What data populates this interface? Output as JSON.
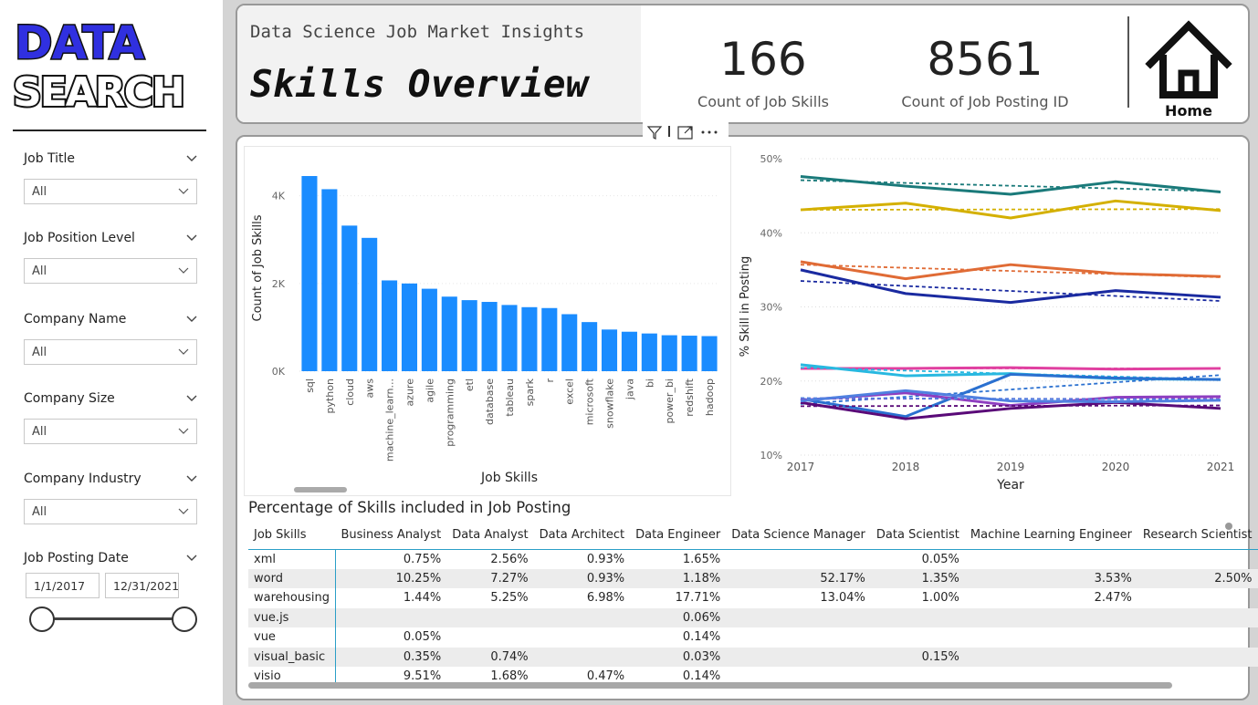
{
  "logo": {
    "line1": "DATA",
    "line2": "SEARCH"
  },
  "filters": [
    {
      "title": "Job Title",
      "value": "All"
    },
    {
      "title": "Job Position Level",
      "value": "All"
    },
    {
      "title": "Company Name",
      "value": "All"
    },
    {
      "title": "Company Size",
      "value": "All"
    },
    {
      "title": "Company Industry",
      "value": "All"
    }
  ],
  "date_filter": {
    "title": "Job Posting Date",
    "start": "1/1/2017",
    "end": "12/31/2021",
    "range_fraction": [
      0,
      1
    ]
  },
  "header": {
    "subtitle": "Data Science Job Market Insights",
    "title": "Skills Overview",
    "kpis": [
      {
        "value": "166",
        "label": "Count of Job Skills"
      },
      {
        "value": "8561",
        "label": "Count of Job Posting ID"
      }
    ],
    "home_label": "Home"
  },
  "colors": {
    "bar": "#1a8cff",
    "header_bg": "#f2f2f2",
    "grid": "#cccccc",
    "table_rule": "#2a9fc7"
  },
  "chart_data": [
    {
      "type": "bar",
      "xlabel": "Job Skills",
      "ylabel": "Count of Job Skills",
      "ytick_labels": [
        "0K",
        "2K",
        "4K"
      ],
      "ylim": [
        0,
        4700
      ],
      "categories": [
        "sql",
        "python",
        "cloud",
        "aws",
        "machine_learn...",
        "azure",
        "agile",
        "programming",
        "etl",
        "database",
        "tableau",
        "spark",
        "r",
        "excel",
        "microsoft",
        "snowflake",
        "java",
        "bi",
        "power_bi",
        "redshift",
        "hadoop"
      ],
      "values": [
        4450,
        4150,
        3320,
        3040,
        2070,
        2000,
        1880,
        1700,
        1620,
        1580,
        1510,
        1460,
        1440,
        1300,
        1120,
        950,
        900,
        860,
        820,
        810,
        800
      ]
    },
    {
      "type": "line",
      "xlabel": "Year",
      "ylabel": "% Skill in Posting",
      "x": [
        "2017",
        "2018",
        "2019",
        "2020",
        "2021"
      ],
      "ylim": [
        10,
        50
      ],
      "ytick_labels": [
        "10%",
        "20%",
        "30%",
        "40%",
        "50%"
      ],
      "series": [
        {
          "color": "#1a7a7a",
          "values": [
            47.6,
            46.3,
            45.2,
            46.9,
            45.5
          ],
          "trend": [
            47.1,
            45.6
          ]
        },
        {
          "color": "#d4b000",
          "values": [
            43.1,
            44.0,
            42.0,
            44.3,
            43.0
          ],
          "trend": [
            43.1,
            43.2
          ]
        },
        {
          "color": "#e06b35",
          "values": [
            36.1,
            33.8,
            35.7,
            34.5,
            34.1
          ],
          "trend": [
            35.7,
            34.0
          ]
        },
        {
          "color": "#1a2aa0",
          "values": [
            35.0,
            31.8,
            30.6,
            32.2,
            31.3
          ],
          "trend": [
            33.5,
            30.8
          ]
        },
        {
          "color": "#e040a0",
          "values": [
            21.7,
            21.7,
            21.8,
            21.6,
            21.7
          ],
          "trend": [
            21.7,
            21.7
          ]
        },
        {
          "color": "#28b8e0",
          "values": [
            22.2,
            20.7,
            21.0,
            20.3,
            20.2
          ],
          "trend": [
            21.8,
            20.2
          ]
        },
        {
          "color": "#2a70d0",
          "values": [
            17.6,
            15.2,
            20.9,
            20.4,
            20.2
          ],
          "trend": [
            16.9,
            20.8
          ]
        },
        {
          "color": "#8e3ec0",
          "values": [
            17.4,
            18.4,
            16.7,
            17.8,
            17.9
          ],
          "trend": [
            17.6,
            17.6
          ]
        },
        {
          "color": "#5a0a78",
          "values": [
            17.1,
            14.9,
            16.3,
            17.1,
            16.3
          ],
          "trend": [
            16.6,
            16.7
          ]
        },
        {
          "color": "#5080e0",
          "values": [
            17.3,
            18.7,
            17.3,
            17.2,
            17.4
          ],
          "trend": [
            17.7,
            17.5
          ]
        }
      ]
    }
  ],
  "table": {
    "title": "Percentage of Skills included in Job Posting",
    "columns": [
      "Job Skills",
      "Business Analyst",
      "Data Analyst",
      "Data Architect",
      "Data Engineer",
      "Data Science Manager",
      "Data Scientist",
      "Machine Learning Engineer",
      "Research Scientist"
    ],
    "rows": [
      [
        "xml",
        "0.75%",
        "2.56%",
        "0.93%",
        "1.65%",
        "",
        "0.05%",
        "",
        ""
      ],
      [
        "word",
        "10.25%",
        "7.27%",
        "0.93%",
        "1.18%",
        "52.17%",
        "1.35%",
        "3.53%",
        "2.50%"
      ],
      [
        "warehousing",
        "1.44%",
        "5.25%",
        "6.98%",
        "17.71%",
        "13.04%",
        "1.00%",
        "2.47%",
        ""
      ],
      [
        "vue.js",
        "",
        "",
        "",
        "0.06%",
        "",
        "",
        "",
        ""
      ],
      [
        "vue",
        "0.05%",
        "",
        "",
        "0.14%",
        "",
        "",
        "",
        ""
      ],
      [
        "visual_basic",
        "0.35%",
        "0.74%",
        "",
        "0.03%",
        "",
        "0.15%",
        "",
        ""
      ],
      [
        "visio",
        "9.51%",
        "1.68%",
        "0.47%",
        "0.14%",
        "",
        "",
        "",
        ""
      ]
    ]
  }
}
